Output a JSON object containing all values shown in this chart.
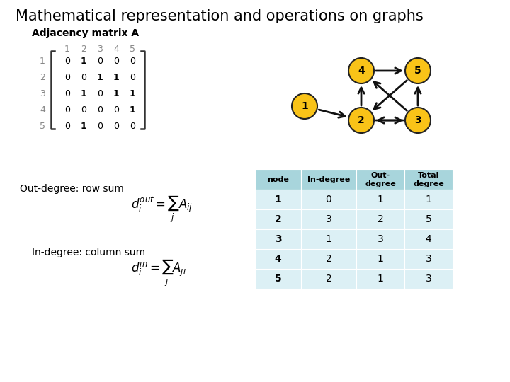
{
  "title": "Mathematical representation and operations on graphs",
  "subtitle": "Adjacency matrix A",
  "matrix": [
    [
      0,
      1,
      0,
      0,
      0
    ],
    [
      0,
      0,
      1,
      1,
      0
    ],
    [
      0,
      1,
      0,
      1,
      1
    ],
    [
      0,
      0,
      0,
      0,
      1
    ],
    [
      0,
      1,
      0,
      0,
      0
    ]
  ],
  "row_labels": [
    "1",
    "2",
    "3",
    "4",
    "5"
  ],
  "col_labels": [
    "1",
    "2",
    "3",
    "4",
    "5"
  ],
  "node_color": "#F9C318",
  "node_border": "#222222",
  "graph_edges": [
    [
      "1",
      "2"
    ],
    [
      "2",
      "3"
    ],
    [
      "2",
      "4"
    ],
    [
      "3",
      "2"
    ],
    [
      "3",
      "4"
    ],
    [
      "3",
      "5"
    ],
    [
      "4",
      "5"
    ],
    [
      "5",
      "2"
    ]
  ],
  "table_header_bg": "#A8D5DC",
  "table_row_bg": "#DCF0F5",
  "table_header_text": "#000000",
  "table_data": [
    [
      "1",
      "0",
      "1",
      "1"
    ],
    [
      "2",
      "3",
      "2",
      "5"
    ],
    [
      "3",
      "1",
      "3",
      "4"
    ],
    [
      "4",
      "2",
      "1",
      "3"
    ],
    [
      "5",
      "2",
      "1",
      "3"
    ]
  ],
  "table_cols": [
    "node",
    "In-degree",
    "Out-\ndegree",
    "Total\ndegree"
  ],
  "out_degree_label": "Out-degree: row sum",
  "in_degree_label": "In-degree: column sum",
  "out_formula": "$d_i^{out} = \\sum_j A_{ij}$",
  "in_formula": "$d_i^{in} = \\sum_j A_{ji}$",
  "bg_color": "#FFFFFF"
}
